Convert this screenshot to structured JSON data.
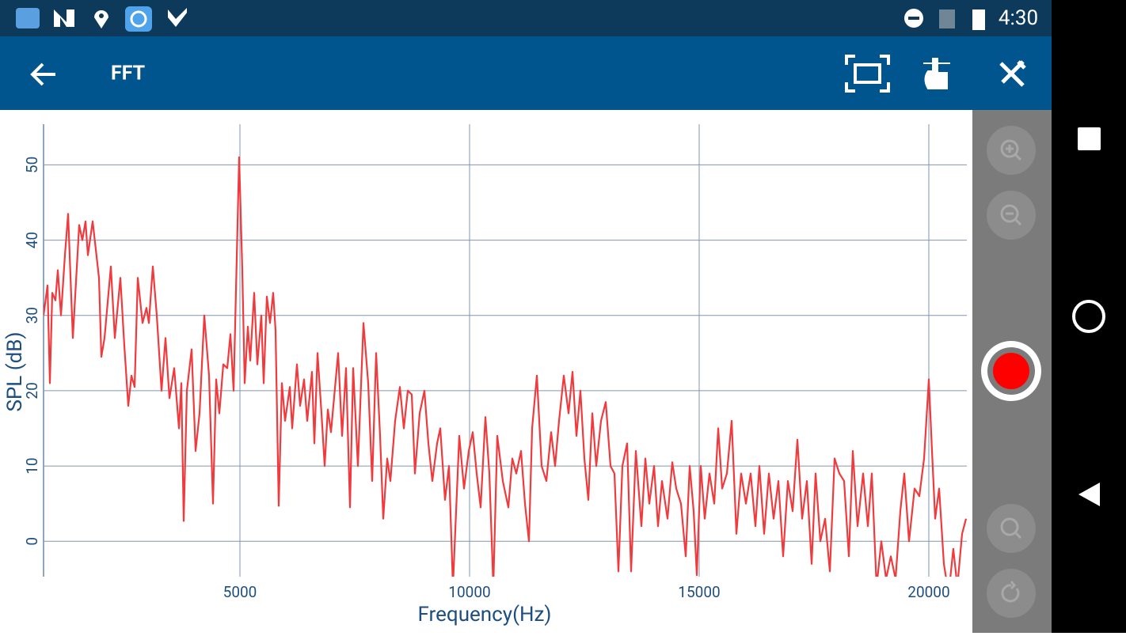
{
  "status_bar": {
    "time": "4:30"
  },
  "app_bar": {
    "title": "FFT"
  },
  "chart_data": {
    "type": "line",
    "x_label": "Frequency(Hz)",
    "y_label": "SPL (dB)",
    "xlim": [
      724,
      20828
    ],
    "ylim": [
      -4.7,
      55.4
    ],
    "xticks": [
      5000,
      10000,
      15000,
      20000
    ],
    "yticks": [
      0,
      10,
      20,
      30,
      40,
      50
    ],
    "grid": true,
    "color": "#ef3b3e",
    "x": [
      724,
      810,
      862,
      914,
      983,
      1034,
      1103,
      1190,
      1259,
      1362,
      1500,
      1569,
      1638,
      1690,
      1793,
      1931,
      1983,
      2052,
      2190,
      2276,
      2397,
      2483,
      2569,
      2638,
      2707,
      2776,
      2879,
      2966,
      3017,
      3103,
      3190,
      3293,
      3379,
      3466,
      3569,
      3672,
      3724,
      3776,
      3845,
      3948,
      4034,
      4121,
      4224,
      4328,
      4414,
      4483,
      4552,
      4638,
      4724,
      4793,
      4862,
      4983,
      5052,
      5103,
      5172,
      5224,
      5310,
      5379,
      5466,
      5517,
      5586,
      5655,
      5724,
      5776,
      5845,
      5914,
      5983,
      6086,
      6138,
      6241,
      6310,
      6397,
      6466,
      6569,
      6621,
      6690,
      6776,
      6845,
      6914,
      6983,
      7138,
      7224,
      7310,
      7397,
      7466,
      7569,
      7690,
      7793,
      7879,
      7966,
      8052,
      8121,
      8207,
      8276,
      8379,
      8483,
      8569,
      8655,
      8741,
      8810,
      8914,
      9017,
      9103,
      9190,
      9293,
      9362,
      9466,
      9552,
      9638,
      9776,
      9879,
      9983,
      10069,
      10155,
      10241,
      10345,
      10431,
      10517,
      10603,
      10724,
      10845,
      10931,
      11017,
      11121,
      11207,
      11293,
      11362,
      11466,
      11569,
      11672,
      11776,
      11862,
      11948,
      12052,
      12155,
      12241,
      12328,
      12414,
      12500,
      12586,
      12672,
      12759,
      12862,
      12966,
      13069,
      13155,
      13241,
      13328,
      13431,
      13517,
      13621,
      13741,
      13828,
      13914,
      14017,
      14103,
      14190,
      14310,
      14414,
      14500,
      14603,
      14707,
      14793,
      14879,
      14948,
      15034,
      15121,
      15224,
      15328,
      15414,
      15500,
      15603,
      15707,
      15810,
      15914,
      16017,
      16121,
      16224,
      16310,
      16414,
      16517,
      16621,
      16724,
      16828,
      16931,
      17034,
      17138,
      17241,
      17345,
      17448,
      17534,
      17638,
      17741,
      17845,
      17948,
      18052,
      18155,
      18259,
      18345,
      18448,
      18569,
      18672,
      18759,
      18862,
      18966,
      19069,
      19172,
      19276,
      19379,
      19466,
      19569,
      19690,
      19793,
      19897,
      20000,
      20069,
      20138,
      20224,
      20328,
      20431,
      20534,
      20621,
      20724,
      20810
    ],
    "values": [
      30,
      34,
      21,
      33,
      32,
      36,
      30,
      38,
      43.5,
      27,
      42,
      40,
      42.5,
      38,
      42.5,
      35,
      24.5,
      27,
      36.5,
      27,
      35,
      26,
      18,
      22,
      20.5,
      35,
      29,
      31,
      29,
      36.5,
      30,
      20,
      27,
      19,
      23,
      15,
      21,
      2.7,
      20,
      25.5,
      12,
      17,
      30,
      22,
      5,
      21.5,
      17,
      23.5,
      23,
      27.5,
      20,
      51,
      36,
      21,
      28.5,
      24,
      33,
      23.5,
      30,
      21,
      32.5,
      29,
      33,
      28,
      4.7,
      21,
      16,
      20.5,
      15,
      23.5,
      18,
      21.5,
      16,
      22.5,
      13,
      25,
      17,
      10,
      17.5,
      14.5,
      25,
      14,
      23,
      4.5,
      23,
      10,
      29,
      21,
      8,
      25,
      14,
      3,
      11,
      8,
      16,
      20.5,
      15,
      20,
      19.5,
      9,
      17,
      20,
      13,
      8,
      13,
      15,
      5.5,
      10,
      -6,
      14,
      7,
      12,
      14.5,
      9,
      4.5,
      16.5,
      9,
      -6,
      14,
      8,
      4.5,
      11,
      9,
      12,
      5,
      0,
      15,
      22,
      10,
      8,
      14.5,
      10,
      16,
      22,
      17,
      22.5,
      14,
      20,
      11,
      5.5,
      17,
      10,
      16,
      18.5,
      10,
      9,
      -4,
      10,
      13,
      -4,
      12,
      2,
      11,
      5,
      10,
      2,
      8,
      3,
      10.5,
      7,
      5,
      -2,
      10,
      4,
      -4.5,
      10,
      3,
      9,
      5,
      15,
      7,
      9,
      16,
      1,
      9,
      5,
      9,
      2,
      10,
      1,
      9,
      3,
      8,
      -2,
      8,
      4,
      13.5,
      3,
      8,
      -3,
      9,
      0,
      3,
      -4,
      11,
      9,
      8,
      -2,
      12,
      2,
      9,
      2,
      9,
      -6,
      0,
      -5,
      -2,
      -5,
      4,
      9,
      0,
      7,
      6,
      11,
      21.5,
      12,
      3,
      7,
      -3,
      -7,
      -1,
      -6,
      1,
      3
    ]
  }
}
